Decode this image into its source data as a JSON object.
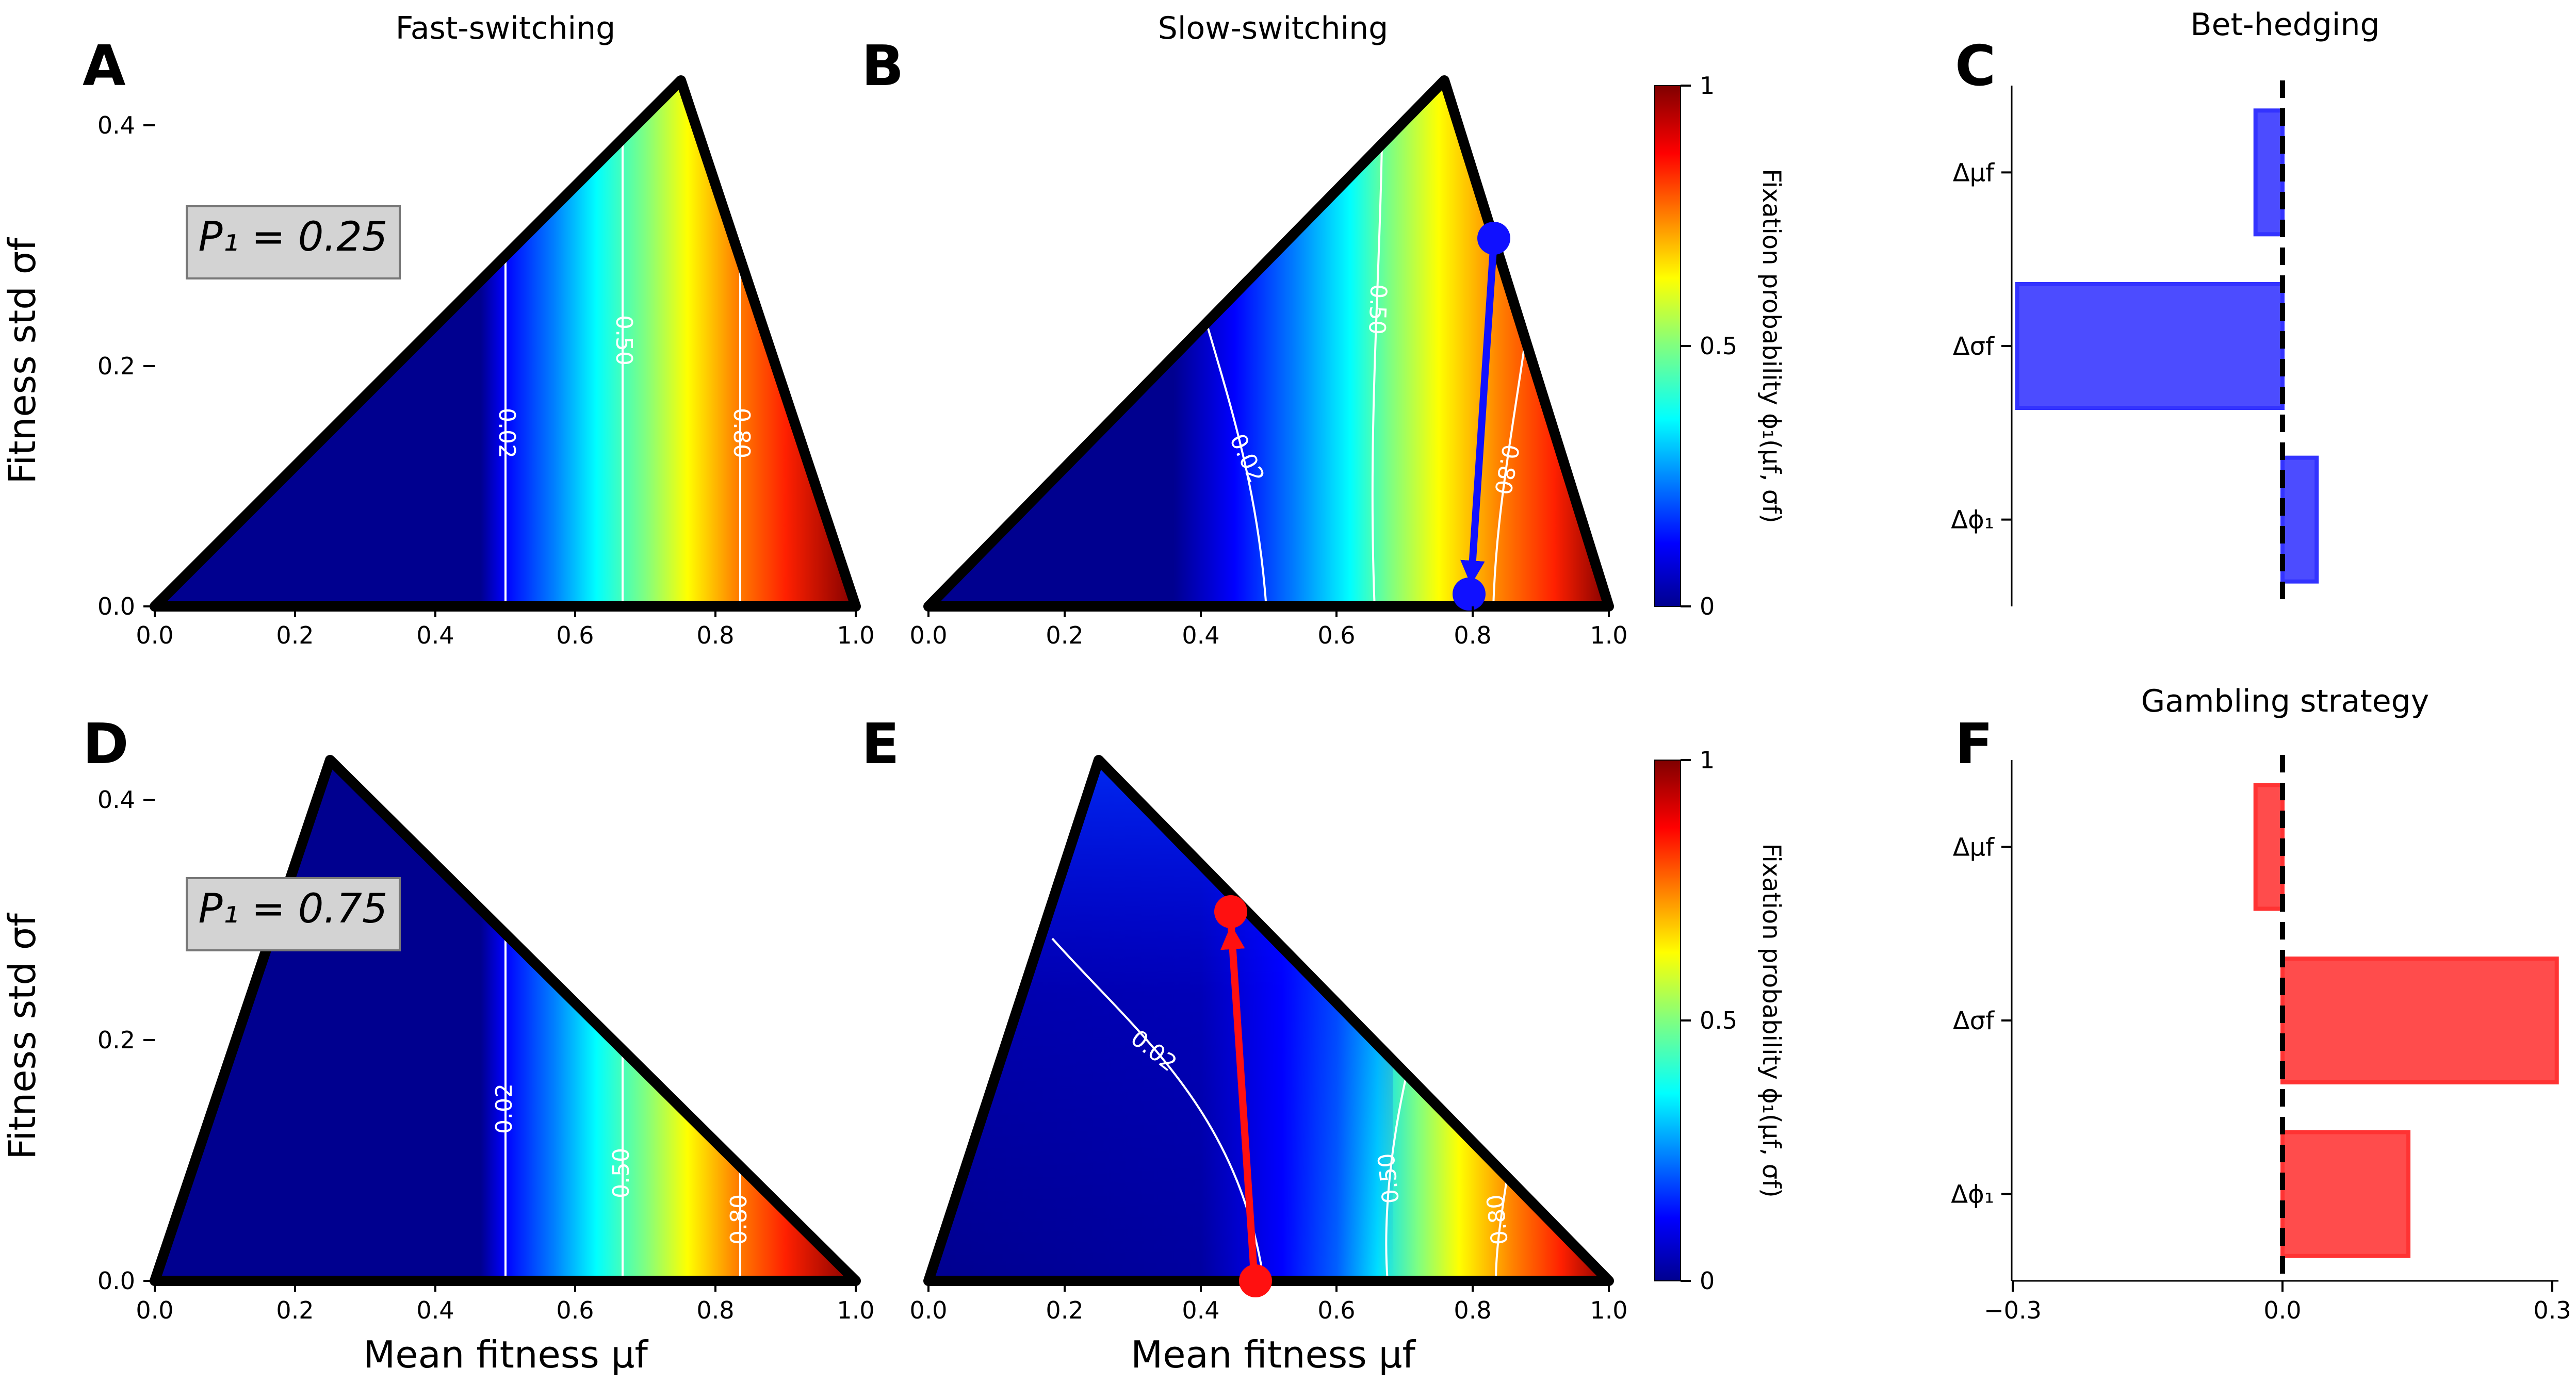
{
  "chart_data": [
    {
      "panel": "A",
      "type": "heatmap",
      "title": "Fast-switching",
      "xlabel": "",
      "ylabel": "Fitness std σf",
      "xlim": [
        0,
        1
      ],
      "ylim": [
        0,
        0.433
      ],
      "p1_label": "P₁ = 0.25",
      "domain_vertices_mu_sigma": [
        [
          0,
          0
        ],
        [
          0.75,
          0.433
        ],
        [
          1,
          0
        ]
      ],
      "contour_levels": [
        0.02,
        0.5,
        0.8
      ],
      "contour_labels": [
        "0.02",
        "0.50",
        "0.80"
      ]
    },
    {
      "panel": "B",
      "type": "heatmap",
      "title": "Slow-switching",
      "xlabel": "",
      "ylabel": "",
      "xlim": [
        0,
        1
      ],
      "ylim": [
        0,
        0.433
      ],
      "domain_vertices_mu_sigma": [
        [
          0,
          0
        ],
        [
          0.75,
          0.433
        ],
        [
          1,
          0
        ]
      ],
      "contour_levels": [
        0.02,
        0.5,
        0.8
      ],
      "contour_labels": [
        "0.02",
        "0.50",
        "0.80"
      ],
      "arrow": {
        "from": [
          0.82,
          0.31
        ],
        "to": [
          0.79,
          0.01
        ],
        "color": "#1010ff"
      },
      "colorbar": {
        "label": "Fixation probability ϕ₁(μf, σf)",
        "ticks": [
          "0",
          "0.5",
          "1"
        ]
      }
    },
    {
      "panel": "C",
      "type": "bar",
      "title": "Bet-hedging",
      "orientation": "horizontal",
      "categories": [
        "Δμf",
        "Δσf",
        "Δϕ₁"
      ],
      "values": [
        -0.03,
        -0.295,
        0.038
      ],
      "xlim": [
        -0.3,
        0.3
      ],
      "color": "#3333ff"
    },
    {
      "panel": "D",
      "type": "heatmap",
      "title": "",
      "xlabel": "Mean fitness μf",
      "ylabel": "Fitness std σf",
      "xlim": [
        0,
        1
      ],
      "ylim": [
        0,
        0.433
      ],
      "p1_label": "P₁ = 0.75",
      "domain_vertices_mu_sigma": [
        [
          0,
          0
        ],
        [
          0.25,
          0.433
        ],
        [
          1,
          0
        ]
      ],
      "contour_levels": [
        0.02,
        0.5,
        0.8
      ],
      "contour_labels": [
        "0.02",
        "0.50",
        "0.80"
      ]
    },
    {
      "panel": "E",
      "type": "heatmap",
      "title": "",
      "xlabel": "Mean fitness μf",
      "ylabel": "",
      "xlim": [
        0,
        1
      ],
      "ylim": [
        0,
        0.433
      ],
      "domain_vertices_mu_sigma": [
        [
          0,
          0
        ],
        [
          0.25,
          0.433
        ],
        [
          1,
          0
        ]
      ],
      "contour_levels": [
        0.02,
        0.5,
        0.8
      ],
      "contour_labels": [
        "0.02",
        "0.50",
        "0.80"
      ],
      "arrow": {
        "from": [
          0.48,
          0.0
        ],
        "to": [
          0.44,
          0.31
        ],
        "color": "#ff1010"
      },
      "colorbar": {
        "label": "Fixation probability ϕ₁(μf, σf)",
        "ticks": [
          "0",
          "0.5",
          "1"
        ]
      }
    },
    {
      "panel": "F",
      "type": "bar",
      "title": "Gambling strategy",
      "orientation": "horizontal",
      "categories": [
        "Δμf",
        "Δσf",
        "Δϕ₁"
      ],
      "values": [
        -0.03,
        0.305,
        0.14
      ],
      "xlim": [
        -0.3,
        0.3
      ],
      "xticks": [
        "−0.3",
        "0.0",
        "0.3"
      ],
      "color": "#ff3333"
    }
  ],
  "x_ticks": [
    "0.0",
    "0.2",
    "0.4",
    "0.6",
    "0.8",
    "1.0"
  ],
  "y_ticks": [
    "0.0",
    "0.2",
    "0.4"
  ]
}
